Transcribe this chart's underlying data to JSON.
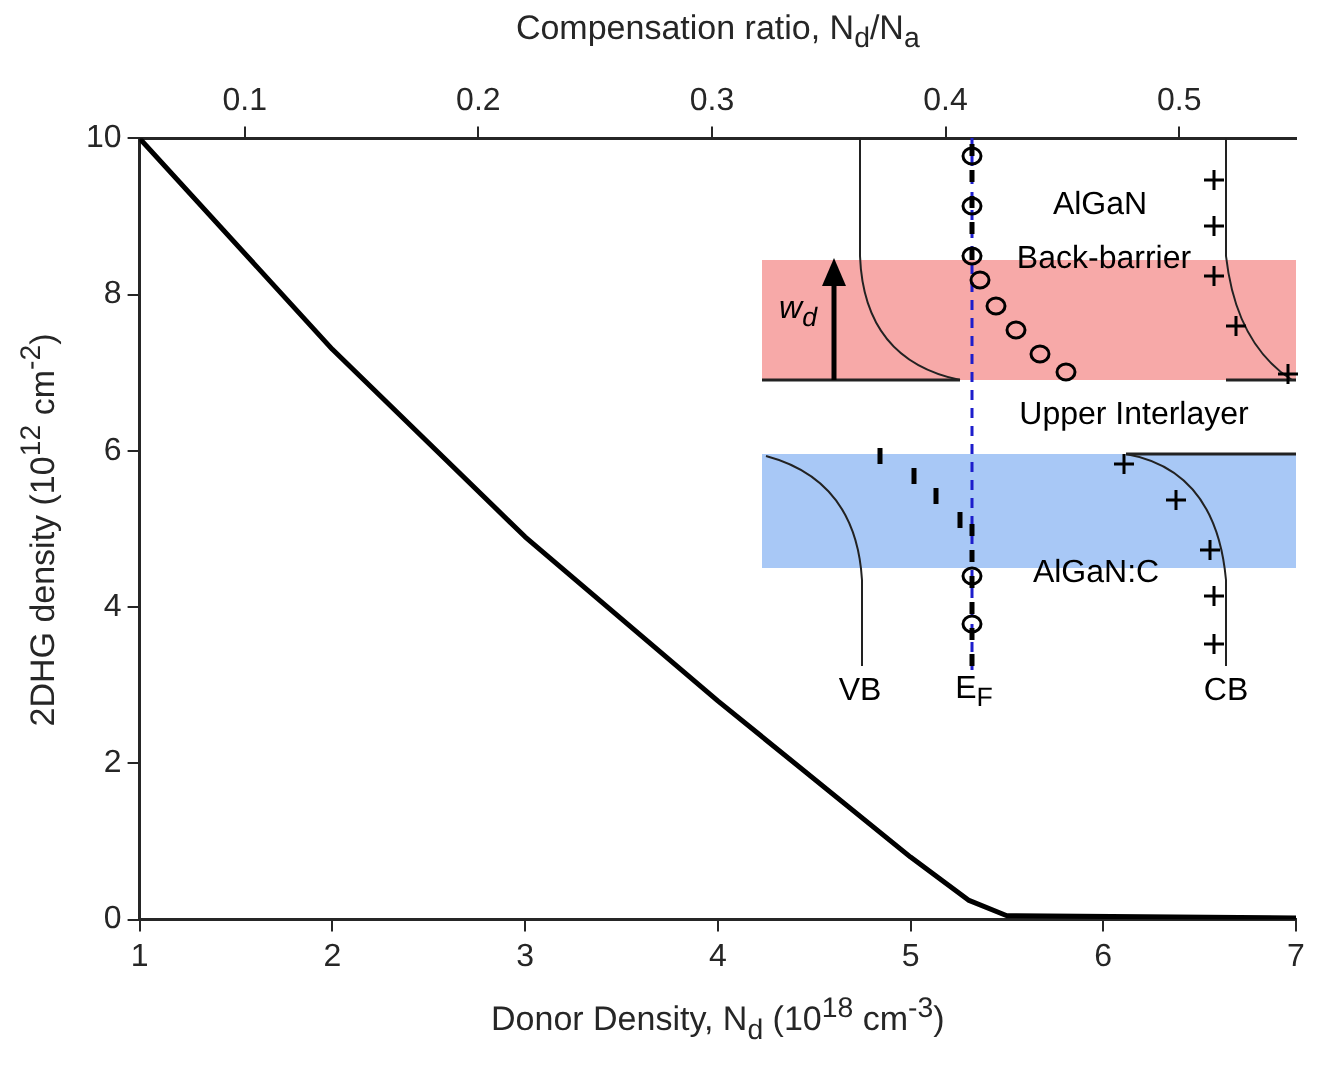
{
  "chart_data": {
    "type": "line",
    "xlabel": "Donor Density, N$_{d}$ (10$^{18}$ cm$^{-3}$)",
    "ylabel": "2DHG density (10$^{12}$ cm$^{-2}$)",
    "x2label": "Compensation ratio, N$_{d}$/N$_{a}$",
    "x": [
      1,
      2,
      3,
      4,
      5,
      5.3,
      5.5,
      7
    ],
    "values": [
      10,
      7.3,
      4.9,
      2.8,
      0.8,
      0.25,
      0.05,
      0.02
    ],
    "color": "#000000",
    "xlim": [
      1,
      7
    ],
    "xticks": [
      1,
      2,
      3,
      4,
      5,
      6,
      7
    ],
    "ylim": [
      0,
      10
    ],
    "yticks": [
      0,
      2,
      4,
      6,
      8,
      10
    ],
    "x2lim": [
      0.055,
      0.55
    ],
    "x2ticks": [
      0.1,
      0.2,
      0.3,
      0.4,
      0.5
    ],
    "grid": false,
    "legend": false,
    "annotations": [
      "AlGaN",
      "Back-barrier",
      "w$_{d}$",
      "Upper Interlayer",
      "AlGaN:C",
      "VB",
      "E$_{F}$",
      "CB"
    ]
  }
}
